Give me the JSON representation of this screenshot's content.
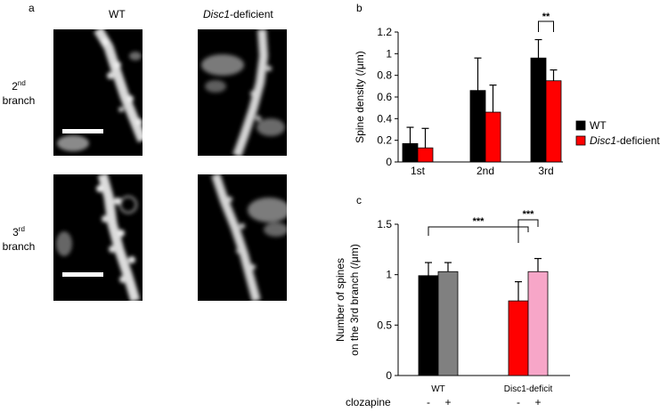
{
  "panels": {
    "a": {
      "letter": "a",
      "columns": {
        "wt": "WT",
        "disc1_italic": "Disc1",
        "disc1_suffix": "-deficient"
      },
      "rows": [
        {
          "ordinal": "2",
          "suffix": "nd",
          "word": "branch"
        },
        {
          "ordinal": "3",
          "suffix": "rd",
          "word": "branch"
        }
      ]
    },
    "b": {
      "letter": "b"
    },
    "c": {
      "letter": "c"
    }
  },
  "colors": {
    "wt": "#000000",
    "deficient": "#ff0000",
    "wt_clozapine": "#808080",
    "deficient_clozapine": "#f7a6c8"
  },
  "chart_data": [
    {
      "type": "bar",
      "panel": "b",
      "categories": [
        "1st",
        "2nd",
        "3rd"
      ],
      "series": [
        {
          "name": "WT",
          "color": "#000000",
          "values": [
            0.17,
            0.66,
            0.96
          ],
          "errors": [
            0.15,
            0.3,
            0.17
          ]
        },
        {
          "name": "Disc1-deficient",
          "name_italic": "Disc1",
          "name_suffix": "-deficient",
          "color": "#ff0000",
          "values": [
            0.13,
            0.46,
            0.75
          ],
          "errors": [
            0.18,
            0.25,
            0.1
          ]
        }
      ],
      "ylabel": "Spine density (/μm)",
      "ylim": [
        0,
        1.2
      ],
      "yticks": [
        "0",
        "0.2",
        "0.4",
        "0.6",
        "0.8",
        "1",
        "1.2"
      ],
      "significance": [
        {
          "category": "3rd",
          "label": "**"
        }
      ],
      "legend_position": "right"
    },
    {
      "type": "bar",
      "panel": "c",
      "groups": [
        {
          "label": "WT",
          "bars": [
            {
              "clozapine": "-",
              "value": 0.99,
              "error": 0.13,
              "color": "#000000"
            },
            {
              "clozapine": "+",
              "value": 1.03,
              "error": 0.09,
              "color": "#808080"
            }
          ]
        },
        {
          "label": "Disc1-deficit",
          "bars": [
            {
              "clozapine": "-",
              "value": 0.74,
              "error": 0.19,
              "color": "#ff0000"
            },
            {
              "clozapine": "+",
              "value": 1.03,
              "error": 0.13,
              "color": "#f7a6c8"
            }
          ]
        }
      ],
      "ylabel_line1": "Number of spines",
      "ylabel_line2": "on the 3rd branch (/μm)",
      "ylim": [
        0,
        1.5
      ],
      "yticks": [
        "0",
        "0.5",
        "1",
        "1.5"
      ],
      "treatment_label": "clozapine",
      "significance": [
        "***",
        "***"
      ]
    }
  ]
}
